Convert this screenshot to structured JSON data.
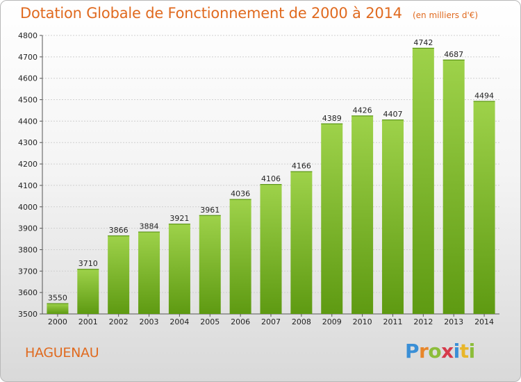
{
  "header": {
    "title": "Dotation Globale de Fonctionnement de 2000 à 2014",
    "unit": "(en milliers d'€)"
  },
  "footer": {
    "commune": "HAGUENAU",
    "brand_letters": [
      "P",
      "r",
      "o",
      "x",
      "i",
      "t",
      "i"
    ],
    "brand_colors": [
      "#3a8fd6",
      "#e8862a",
      "#8cbd3a",
      "#d63a4a",
      "#3a8fd6",
      "#e8b62a",
      "#8cbd3a"
    ]
  },
  "colors": {
    "bar_top": "#9ed24a",
    "bar_bottom": "#5e9a12",
    "text": "#222222",
    "accent": "#e06a1f"
  },
  "chart_data": {
    "type": "bar",
    "categories": [
      "2000",
      "2001",
      "2002",
      "2003",
      "2004",
      "2005",
      "2006",
      "2007",
      "2008",
      "2009",
      "2010",
      "2011",
      "2012",
      "2013",
      "2014"
    ],
    "values": [
      3550,
      3710,
      3866,
      3884,
      3921,
      3961,
      4036,
      4106,
      4166,
      4389,
      4426,
      4407,
      4742,
      4687,
      4494
    ],
    "title": "Dotation Globale de Fonctionnement de 2000 à 2014",
    "ylim": [
      3500,
      4800
    ],
    "yticks": [
      3500,
      3600,
      3700,
      3800,
      3900,
      4000,
      4100,
      4200,
      4300,
      4400,
      4500,
      4600,
      4700,
      4800
    ],
    "grid": true,
    "legend": "none"
  }
}
